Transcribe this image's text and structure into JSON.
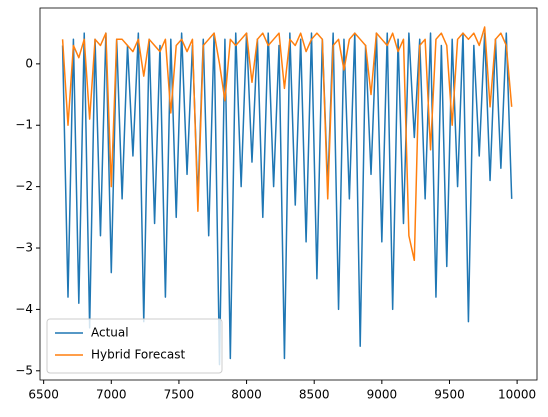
{
  "chart_data": {
    "type": "line",
    "x": [
      6640,
      6680,
      6720,
      6760,
      6800,
      6840,
      6880,
      6920,
      6960,
      7000,
      7040,
      7080,
      7120,
      7160,
      7200,
      7240,
      7280,
      7320,
      7360,
      7400,
      7440,
      7480,
      7520,
      7560,
      7600,
      7640,
      7680,
      7720,
      7760,
      7800,
      7840,
      7880,
      7920,
      7960,
      8000,
      8040,
      8080,
      8120,
      8160,
      8200,
      8240,
      8280,
      8320,
      8360,
      8400,
      8440,
      8480,
      8520,
      8560,
      8600,
      8640,
      8680,
      8720,
      8760,
      8800,
      8840,
      8880,
      8920,
      8960,
      9000,
      9040,
      9080,
      9120,
      9160,
      9200,
      9240,
      9280,
      9320,
      9360,
      9400,
      9440,
      9480,
      9520,
      9560,
      9600,
      9640,
      9680,
      9720,
      9760,
      9800,
      9840,
      9880,
      9920,
      9960
    ],
    "series": [
      {
        "name": "Actual",
        "color": "#1f77b4",
        "values": [
          0.3,
          -3.8,
          0.4,
          -3.9,
          0.5,
          -4.3,
          0.4,
          -2.8,
          0.5,
          -3.4,
          0.4,
          -2.2,
          0.3,
          -1.5,
          0.5,
          -4.2,
          0.4,
          -2.6,
          0.3,
          -3.8,
          0.4,
          -2.5,
          0.5,
          -1.8,
          0.3,
          -2.2,
          0.4,
          -2.8,
          0.5,
          -4.9,
          0.4,
          -4.8,
          0.5,
          -2.0,
          0.5,
          -1.6,
          0.4,
          -2.5,
          0.5,
          -2.0,
          0.3,
          -4.8,
          0.5,
          -2.3,
          0.4,
          -2.9,
          0.5,
          -3.5,
          0.4,
          -2.0,
          0.5,
          -4.0,
          0.4,
          -2.2,
          0.5,
          -4.6,
          0.3,
          -1.8,
          0.5,
          -2.9,
          0.5,
          -4.0,
          0.4,
          -2.6,
          0.5,
          -1.2,
          0.4,
          -2.2,
          0.5,
          -3.8,
          0.3,
          -3.3,
          0.4,
          -2.0,
          0.5,
          -4.2,
          0.3,
          -1.5,
          0.5,
          -1.9,
          0.4,
          -1.7,
          0.5,
          -2.2
        ]
      },
      {
        "name": "Hybrid Forecast",
        "color": "#ff7f0e",
        "values": [
          0.4,
          -1.0,
          0.3,
          0.1,
          0.4,
          -0.9,
          0.4,
          0.3,
          0.5,
          -2.0,
          0.4,
          0.4,
          0.3,
          0.2,
          0.4,
          -0.2,
          0.4,
          0.3,
          0.2,
          0.4,
          -0.8,
          0.3,
          0.4,
          0.2,
          0.4,
          -2.4,
          0.3,
          0.4,
          0.5,
          0.0,
          -0.6,
          0.4,
          0.3,
          0.4,
          0.5,
          -0.3,
          0.4,
          0.5,
          0.3,
          0.4,
          0.5,
          -0.4,
          0.4,
          0.3,
          0.5,
          0.2,
          0.4,
          0.5,
          0.4,
          -2.2,
          0.3,
          0.4,
          -0.1,
          0.4,
          0.5,
          0.4,
          0.3,
          -0.5,
          0.5,
          0.4,
          0.3,
          0.5,
          0.2,
          0.4,
          -2.8,
          -3.2,
          0.3,
          0.4,
          -1.4,
          0.4,
          0.5,
          0.3,
          -1.0,
          0.4,
          0.5,
          0.4,
          0.5,
          0.3,
          0.6,
          -0.7,
          0.4,
          0.5,
          0.3,
          -0.7
        ]
      }
    ],
    "xlim": [
      6473,
      10147
    ],
    "xticks": [
      6500,
      7000,
      7500,
      8000,
      8500,
      9000,
      9500,
      10000
    ],
    "ylim": [
      -5.15,
      0.91
    ],
    "yticks": [
      {
        "value": -5,
        "label": "−5"
      },
      {
        "value": -4,
        "label": "−4"
      },
      {
        "value": -3,
        "label": "−3"
      },
      {
        "value": -2,
        "label": "−2"
      },
      {
        "value": -1,
        "label": "−1"
      },
      0
    ],
    "legend": "lower left"
  }
}
